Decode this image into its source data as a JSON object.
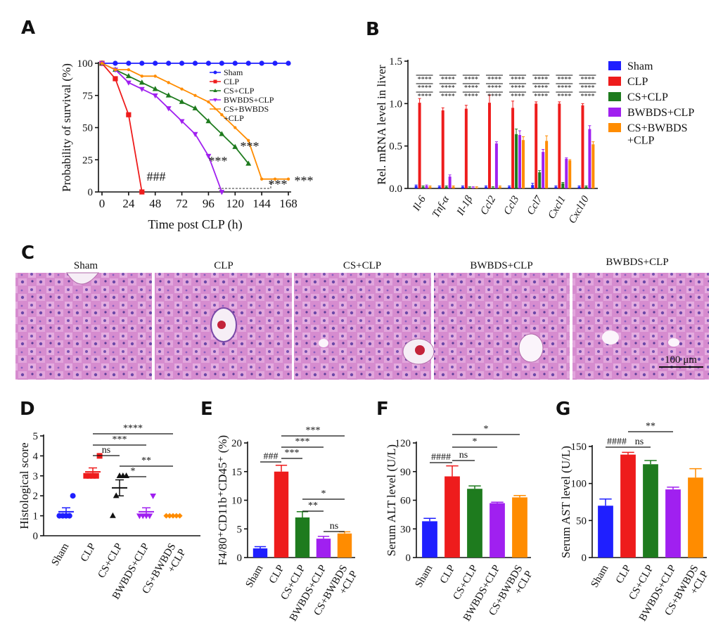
{
  "chart_data": [
    {
      "panel": "A",
      "type": "line",
      "ylabel": "Probability of survival (%)",
      "xlabel": "Time post CLP (h)",
      "xlim": [
        0,
        168
      ],
      "xticks": [
        0,
        24,
        48,
        72,
        96,
        120,
        144,
        168
      ],
      "ylim": [
        0,
        100
      ],
      "yticks": [
        0,
        25,
        50,
        75,
        100
      ],
      "series": [
        {
          "name": "Sham",
          "color": "#1f1fff",
          "marker": "circle",
          "x": [
            0,
            12,
            24,
            36,
            48,
            60,
            72,
            84,
            96,
            108,
            120,
            132,
            144,
            156,
            168
          ],
          "values": [
            100,
            100,
            100,
            100,
            100,
            100,
            100,
            100,
            100,
            100,
            100,
            100,
            100,
            100,
            100
          ]
        },
        {
          "name": "CLP",
          "color": "#ee1c1c",
          "marker": "square",
          "x": [
            0,
            12,
            24,
            36
          ],
          "values": [
            100,
            88,
            60,
            0
          ]
        },
        {
          "name": "CS+CLP",
          "color": "#1e7b1e",
          "marker": "triangle",
          "x": [
            0,
            12,
            24,
            36,
            48,
            60,
            72,
            84,
            96,
            108,
            120,
            132
          ],
          "values": [
            100,
            95,
            90,
            85,
            80,
            75,
            70,
            65,
            55,
            45,
            35,
            22
          ]
        },
        {
          "name": "BWBDS+CLP",
          "color": "#a020f0",
          "marker": "triangle-down",
          "x": [
            0,
            12,
            24,
            36,
            48,
            60,
            72,
            84,
            96,
            108
          ],
          "values": [
            100,
            95,
            85,
            80,
            75,
            65,
            55,
            45,
            28,
            0
          ]
        },
        {
          "name": "CS+BWBDS\n+CLP",
          "color": "#ff8c00",
          "marker": "dot",
          "x": [
            0,
            12,
            24,
            36,
            48,
            60,
            72,
            84,
            96,
            108,
            120,
            132,
            144,
            156,
            168
          ],
          "values": [
            100,
            95,
            95,
            90,
            90,
            85,
            80,
            75,
            70,
            60,
            50,
            40,
            10,
            10,
            10
          ]
        }
      ],
      "annotations": [
        "###",
        "***",
        "***",
        "***",
        "***"
      ]
    },
    {
      "panel": "B",
      "type": "grouped_bar",
      "ylabel": "Rel. mRNA level in liver",
      "categories": [
        "Il-6",
        "Tnf-α",
        "Il-1β",
        "Ccl2",
        "Ccl3",
        "Ccl7",
        "Cxcl1",
        "Cxcl10"
      ],
      "ylim": [
        0,
        1.5
      ],
      "yticks": [
        {
          "value": 0,
          "label": "0.0"
        },
        0.5,
        {
          "value": 1,
          "label": "1.0"
        },
        1.5
      ],
      "series": [
        {
          "name": "Sham",
          "color": "#1f1fff",
          "values": [
            0.03,
            0.02,
            0.02,
            0.02,
            0.02,
            0.04,
            0.02,
            0.02
          ],
          "errors": [
            0.01,
            0.01,
            0.01,
            0.01,
            0.01,
            0.02,
            0.01,
            0.01
          ]
        },
        {
          "name": "CLP",
          "color": "#ee1c1c",
          "values": [
            1.01,
            0.92,
            0.94,
            1.01,
            0.95,
            1.0,
            1.0,
            0.98
          ],
          "errors": [
            0.05,
            0.03,
            0.04,
            0.09,
            0.08,
            0.02,
            0.02,
            0.02
          ]
        },
        {
          "name": "CS+CLP",
          "color": "#1e7b1e",
          "values": [
            0.02,
            0.02,
            0.01,
            0.01,
            0.64,
            0.19,
            0.06,
            0.02
          ],
          "errors": [
            0.01,
            0.01,
            0.01,
            0.01,
            0.06,
            0.02,
            0.01,
            0.01
          ]
        },
        {
          "name": "BWBDS+CLP",
          "color": "#a020f0",
          "values": [
            0.03,
            0.14,
            0.01,
            0.53,
            0.63,
            0.43,
            0.35,
            0.7
          ],
          "errors": [
            0.01,
            0.02,
            0.01,
            0.02,
            0.05,
            0.03,
            0.01,
            0.04
          ]
        },
        {
          "name": "CS+BWBDS\n+CLP",
          "color": "#ff8c00",
          "values": [
            0.02,
            0.02,
            0.01,
            0.02,
            0.57,
            0.56,
            0.33,
            0.52
          ],
          "errors": [
            0.01,
            0.01,
            0.01,
            0.01,
            0.04,
            0.06,
            0.01,
            0.03
          ]
        }
      ],
      "significance": [
        [
          "****",
          "****",
          "****"
        ],
        [
          "****",
          "****",
          "****"
        ],
        [
          "****",
          "****",
          "****"
        ],
        [
          "****",
          "****",
          "****"
        ],
        [
          "****",
          "****",
          "****"
        ],
        [
          "****",
          "****",
          "****"
        ],
        [
          "****",
          "****",
          "****"
        ],
        [
          "****",
          "****",
          "****"
        ]
      ]
    },
    {
      "panel": "D",
      "type": "dot",
      "ylabel": "Histological score",
      "categories": [
        "Sham",
        "CLP",
        "CS+CLP",
        "BWBDS+CLP",
        "CS+BWBDS\n+CLP"
      ],
      "colors": [
        "#1f1fff",
        "#ee1c1c",
        "#111111",
        "#a020f0",
        "#ff8c00"
      ],
      "markers": [
        "circle",
        "square",
        "triangle",
        "triangle-down",
        "diamond"
      ],
      "ylim": [
        0,
        5
      ],
      "yticks": [
        0,
        1,
        2,
        3,
        4,
        5
      ],
      "values": [
        [
          1,
          1,
          1,
          1,
          2
        ],
        [
          3,
          3,
          3,
          3,
          4
        ],
        [
          1,
          2,
          3,
          3,
          3
        ],
        [
          1,
          1,
          1,
          1,
          2
        ],
        [
          1,
          1,
          1,
          1,
          1
        ]
      ],
      "means": [
        1.2,
        3.2,
        2.4,
        1.2,
        1
      ],
      "errors": [
        0.2,
        0.2,
        0.4,
        0.2,
        0
      ],
      "significance": [
        "ns",
        "***",
        "****",
        "*",
        "**"
      ]
    },
    {
      "panel": "E",
      "type": "bar",
      "ylabel": "F4/80⁺CD11b⁺CD45⁺ (%)",
      "categories": [
        "Sham",
        "CLP",
        "CS+CLP",
        "BWBDS+CLP",
        "CS+BWBDS\n+CLP"
      ],
      "colors": [
        "#1f1fff",
        "#ee1c1c",
        "#1e7b1e",
        "#a020f0",
        "#ff8c00"
      ],
      "ylim": [
        0,
        20
      ],
      "yticks": [
        0,
        5,
        10,
        15,
        20
      ],
      "values": [
        1.6,
        15,
        7,
        3.3,
        4.2
      ],
      "errors": [
        0.3,
        1.1,
        1.0,
        0.4,
        0.3
      ],
      "significance": [
        "###",
        "***",
        "***",
        "***",
        "*",
        "**",
        "ns"
      ]
    },
    {
      "panel": "F",
      "type": "bar",
      "ylabel": "Serum ALT level (U/L)",
      "categories": [
        "Sham",
        "CLP",
        "CS+CLP",
        "BWBDS+CLP",
        "CS+BWBDS\n+CLP"
      ],
      "colors": [
        "#1f1fff",
        "#ee1c1c",
        "#1e7b1e",
        "#a020f0",
        "#ff8c00"
      ],
      "ylim": [
        0,
        120
      ],
      "yticks": [
        0,
        30,
        60,
        90,
        120
      ],
      "values": [
        38,
        85,
        72,
        57,
        63
      ],
      "errors": [
        3,
        11,
        3,
        1,
        2
      ],
      "significance": [
        "####",
        "ns",
        "*",
        "*"
      ]
    },
    {
      "panel": "G",
      "type": "bar",
      "ylabel": "Serum AST level (U/L)",
      "categories": [
        "Sham",
        "CLP",
        "CS+CLP",
        "BWBDS+CLP",
        "CS+BWBDS\n+CLP"
      ],
      "colors": [
        "#1f1fff",
        "#ee1c1c",
        "#1e7b1e",
        "#a020f0",
        "#ff8c00"
      ],
      "ylim": [
        0,
        150
      ],
      "yticks": [
        0,
        50,
        100,
        150
      ],
      "values": [
        70,
        139,
        126,
        92,
        108
      ],
      "errors": [
        9,
        3,
        5,
        3,
        12
      ],
      "significance": [
        "####",
        "ns",
        "**"
      ]
    }
  ],
  "histology": {
    "panel": "C",
    "labels": [
      "Sham",
      "CLP",
      "CS+CLP",
      "BWBDS+CLP",
      "BWBDS+CLP"
    ],
    "scale_bar": "100 μm"
  }
}
